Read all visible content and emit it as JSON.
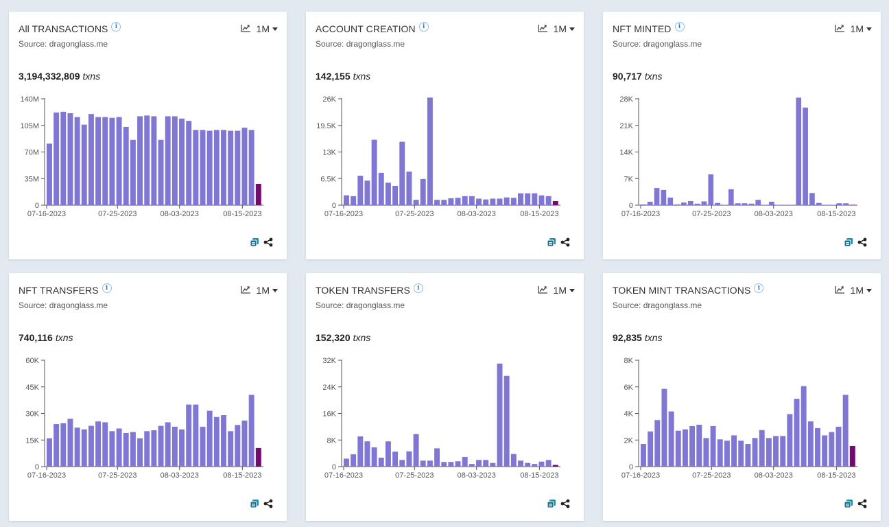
{
  "common": {
    "source": "Source: dragonglass.me",
    "period": "1M",
    "unit": "txns"
  },
  "colors": {
    "bar": "#8076d3",
    "last_bar": "#74096e",
    "axis": "#555555"
  },
  "cards": [
    {
      "title": "All TRANSACTIONS",
      "total": "3,194,332,809"
    },
    {
      "title": "ACCOUNT CREATION",
      "total": "142,155"
    },
    {
      "title": "NFT MINTED",
      "total": "90,717"
    },
    {
      "title": "NFT TRANSFERS",
      "total": "740,116"
    },
    {
      "title": "TOKEN TRANSFERS",
      "total": "152,320"
    },
    {
      "title": "TOKEN MINT TRANSACTIONS",
      "total": "92,835"
    }
  ],
  "chart_data": [
    {
      "type": "bar",
      "title": "All TRANSACTIONS",
      "xtick_labels": [
        "07-16-2023",
        "07-25-2023",
        "08-03-2023",
        "08-15-2023"
      ],
      "ytick_labels": [
        "0",
        "35M",
        "70M",
        "105M",
        "140M"
      ],
      "ylim": [
        0,
        140
      ],
      "values": [
        81,
        122,
        123,
        121,
        116,
        106,
        120,
        116,
        116,
        115,
        116,
        103,
        86,
        117,
        118,
        117,
        86,
        117,
        117,
        114,
        111,
        99,
        99,
        98,
        99,
        99,
        98,
        98,
        102,
        99,
        28
      ]
    },
    {
      "type": "bar",
      "title": "ACCOUNT CREATION",
      "xtick_labels": [
        "07-16-2023",
        "07-25-2023",
        "08-03-2023",
        "08-15-2023"
      ],
      "ytick_labels": [
        "0",
        "6.5K",
        "13K",
        "19.5K",
        "26K"
      ],
      "ylim": [
        0,
        26
      ],
      "values": [
        2.4,
        2.2,
        7.2,
        6.0,
        16.0,
        7.9,
        5.5,
        4.7,
        15.5,
        8.2,
        1.3,
        6.4,
        26.3,
        1.3,
        1.3,
        1.7,
        1.8,
        2.2,
        2.2,
        1.6,
        1.4,
        1.6,
        1.6,
        1.9,
        1.8,
        2.9,
        2.9,
        2.9,
        2.4,
        2.2,
        1.0
      ]
    },
    {
      "type": "bar",
      "title": "NFT MINTED",
      "xtick_labels": [
        "07-16-2023",
        "07-25-2023",
        "08-03-2023",
        "08-15-2023"
      ],
      "ytick_labels": [
        "0",
        "7K",
        "14K",
        "21K",
        "28K"
      ],
      "ylim": [
        0,
        28
      ],
      "values": [
        0.2,
        0.9,
        4.5,
        4.0,
        2.0,
        0.2,
        0.7,
        1.1,
        0.4,
        1.0,
        8.1,
        0.6,
        0.1,
        4.2,
        0.5,
        0.5,
        0.4,
        1.4,
        0.1,
        0.9,
        0.1,
        0.1,
        0.1,
        28.3,
        25.7,
        3.2,
        0.6,
        0.1,
        0.1,
        0.5,
        0.5,
        0.1
      ]
    },
    {
      "type": "bar",
      "title": "NFT TRANSFERS",
      "xtick_labels": [
        "07-16-2023",
        "07-25-2023",
        "08-03-2023",
        "08-15-2023"
      ],
      "ytick_labels": [
        "0",
        "15K",
        "30K",
        "45K",
        "60K"
      ],
      "ylim": [
        0,
        60
      ],
      "values": [
        16,
        24,
        24.5,
        27,
        22,
        21,
        23,
        25.5,
        25,
        20,
        21.5,
        19,
        19.5,
        16,
        20,
        20.5,
        23,
        25,
        22.5,
        21,
        35,
        35,
        22.5,
        31.5,
        28,
        29,
        20,
        23.5,
        26,
        40.5,
        10.5
      ]
    },
    {
      "type": "bar",
      "title": "TOKEN TRANSFERS",
      "xtick_labels": [
        "07-16-2023",
        "07-25-2023",
        "08-03-2023",
        "08-15-2023"
      ],
      "ytick_labels": [
        "0",
        "8K",
        "16K",
        "24K",
        "32K"
      ],
      "ylim": [
        0,
        32
      ],
      "values": [
        2.4,
        3.7,
        9.1,
        7.6,
        5.8,
        2.7,
        7.6,
        4.5,
        2.0,
        4.6,
        9.8,
        1.8,
        1.8,
        5.5,
        1.4,
        1.4,
        1.6,
        2.9,
        0.8,
        2.0,
        2.0,
        1.1,
        31.0,
        27.3,
        3.8,
        1.8,
        1.1,
        0.8,
        1.5,
        2.0,
        0.5
      ]
    },
    {
      "type": "bar",
      "title": "TOKEN MINT TRANSACTIONS",
      "xtick_labels": [
        "07-16-2023",
        "07-25-2023",
        "08-03-2023",
        "08-15-2023"
      ],
      "ytick_labels": [
        "0",
        "2K",
        "4K",
        "6K",
        "8K"
      ],
      "ylim": [
        0,
        8
      ],
      "values": [
        1.7,
        2.65,
        3.5,
        5.85,
        4.15,
        2.7,
        2.8,
        3.05,
        3.15,
        2.15,
        3.05,
        2.05,
        1.95,
        2.35,
        1.95,
        1.7,
        2.15,
        2.75,
        2.15,
        2.3,
        2.3,
        3.95,
        5.1,
        6.05,
        3.4,
        2.9,
        2.35,
        2.6,
        3.0,
        5.4,
        1.55
      ]
    }
  ]
}
